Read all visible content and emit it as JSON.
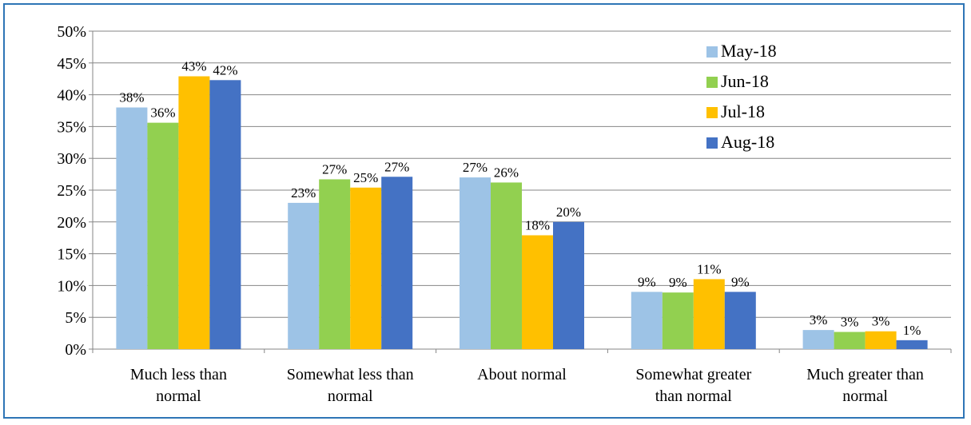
{
  "chart_data": {
    "type": "bar",
    "categories": [
      [
        "Much less than",
        "normal"
      ],
      [
        "Somewhat less than",
        "normal"
      ],
      [
        "About normal"
      ],
      [
        "Somewhat greater",
        "than normal"
      ],
      [
        "Much greater than",
        "normal"
      ]
    ],
    "series": [
      {
        "name": "May-18",
        "color": "#9dc3e6",
        "values": [
          38,
          23,
          27,
          9,
          3
        ],
        "labels": [
          "38%",
          "23%",
          "27%",
          "9%",
          "3%"
        ]
      },
      {
        "name": "Jun-18",
        "color": "#92d050",
        "values": [
          35.6,
          26.7,
          26.2,
          8.9,
          2.7
        ],
        "labels": [
          "36%",
          "27%",
          "26%",
          "9%",
          "3%"
        ]
      },
      {
        "name": "Jul-18",
        "color": "#ffc000",
        "values": [
          42.9,
          25.4,
          17.9,
          11,
          2.8
        ],
        "labels": [
          "43%",
          "25%",
          "18%",
          "11%",
          "3%"
        ]
      },
      {
        "name": "Aug-18",
        "color": "#4472c4",
        "values": [
          42.3,
          27.1,
          20,
          9,
          1.4
        ],
        "labels": [
          "42%",
          "27%",
          "20%",
          "9%",
          "1%"
        ]
      }
    ],
    "yticks": [
      "0%",
      "5%",
      "10%",
      "15%",
      "20%",
      "25%",
      "30%",
      "35%",
      "40%",
      "45%",
      "50%"
    ],
    "ylim": [
      0,
      50
    ],
    "grid": true,
    "legend_position": "top-right",
    "title": "",
    "xlabel": "",
    "ylabel": ""
  }
}
